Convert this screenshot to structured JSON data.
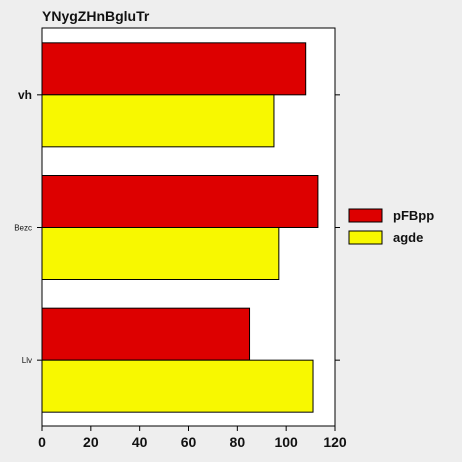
{
  "chart_data": {
    "type": "bar",
    "orientation": "horizontal",
    "title": "YNygZHnBgluTr",
    "categories": [
      "vh",
      "Bezc",
      "Llv"
    ],
    "series": [
      {
        "name": "pFBpp",
        "color": "#dd0000",
        "values": [
          108,
          113,
          85
        ]
      },
      {
        "name": "agde",
        "color": "#f8f800",
        "values": [
          95,
          97,
          111
        ]
      }
    ],
    "xlim": [
      0,
      120
    ],
    "xticks": [
      "0",
      "20",
      "40",
      "60",
      "80",
      "100",
      "120"
    ],
    "xlabel": "",
    "ylabel": "",
    "grid": false,
    "legend_position": "right"
  }
}
